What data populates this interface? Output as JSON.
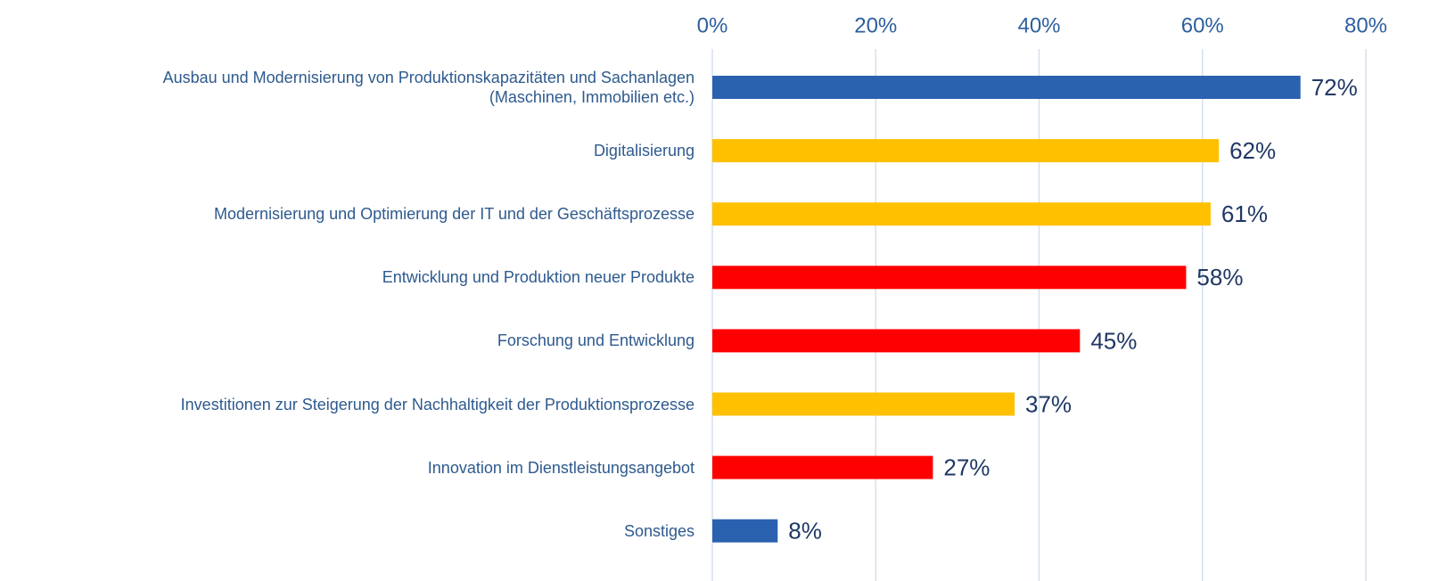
{
  "chart_data": {
    "type": "barh",
    "categories": [
      "Ausbau und Modernisierung von Produktionskapazitäten und Sachanlagen\n(Maschinen, Immobilien etc.)",
      "Digitalisierung",
      "Modernisierung und Optimierung der IT und der Geschäftsprozesse",
      "Entwicklung und Produktion neuer Produkte",
      "Forschung und Entwicklung",
      "Investitionen zur Steigerung der Nachhaltigkeit der Produktionsprozesse",
      "Innovation im Dienstleistungsangebot",
      "Sonstiges"
    ],
    "values": [
      72,
      62,
      61,
      58,
      45,
      37,
      27,
      8
    ],
    "value_labels": [
      "72%",
      "62%",
      "61%",
      "58%",
      "45%",
      "37%",
      "27%",
      "8%"
    ],
    "colors": [
      "#2b62b0",
      "#ffc000",
      "#ffc000",
      "#ff0000",
      "#ff0000",
      "#ffc000",
      "#ff0000",
      "#2b62b0"
    ],
    "xlim": [
      0,
      80
    ],
    "xticks": [
      {
        "value": 0,
        "label": "0%"
      },
      {
        "value": 20,
        "label": "20%"
      },
      {
        "value": 40,
        "label": "40%"
      },
      {
        "value": 60,
        "label": "60%"
      },
      {
        "value": 80,
        "label": "80%"
      }
    ],
    "grid": true
  }
}
